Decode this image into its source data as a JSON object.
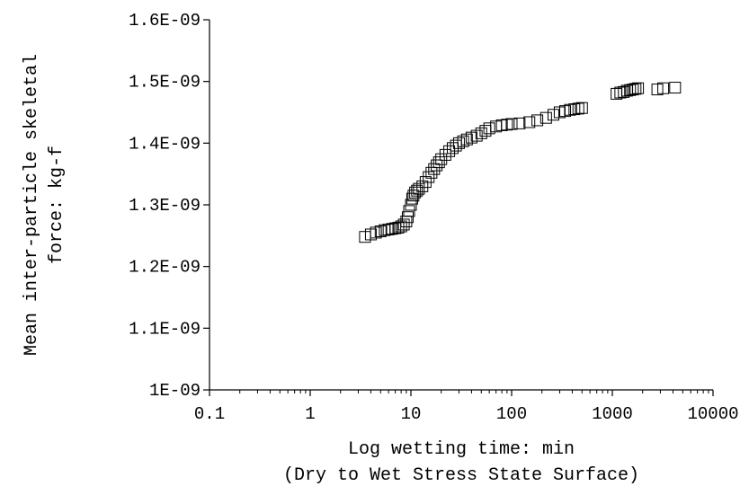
{
  "chart_data": {
    "type": "scatter",
    "title": "",
    "xlabel": "Log wetting time: min",
    "xlabel_line2": "(Dry to Wet Stress State Surface)",
    "ylabel": "Mean inter-particle skeletal",
    "ylabel_line2": "force: kg-f",
    "x_scale": "log",
    "xlim": [
      0.1,
      10000
    ],
    "ylim": [
      1e-09,
      1.6e-09
    ],
    "x_ticks": [
      0.1,
      1,
      10,
      100,
      1000,
      10000
    ],
    "x_tick_labels": [
      "0.1",
      "1",
      "10",
      "100",
      "1000",
      "10000"
    ],
    "y_ticks": [
      1e-09,
      1.1e-09,
      1.2e-09,
      1.3e-09,
      1.4e-09,
      1.5e-09,
      1.6e-09
    ],
    "y_tick_labels": [
      "1E-09",
      "1.1E-09",
      "1.2E-09",
      "1.3E-09",
      "1.4E-09",
      "1.5E-09",
      "1.6E-09"
    ],
    "grid": false,
    "legend": "none",
    "marker": "open-square",
    "colors": {
      "marker_stroke": "#000000",
      "axis": "#000000",
      "background": "#ffffff"
    },
    "series": [
      {
        "x": [
          3.5,
          4.0,
          4.5,
          5.0,
          5.5,
          6.0,
          6.5,
          7.0,
          7.5,
          8.0,
          8.5,
          9.0,
          9.3,
          9.6,
          10.0,
          10.3,
          10.6,
          11.0,
          11.5,
          12.0,
          13.0,
          14.0,
          15.0,
          16.0,
          17.0,
          18.0,
          19.0,
          20.0,
          22.0,
          24.0,
          26.0,
          28.0,
          30.0,
          33.0,
          36.0,
          40.0,
          45.0,
          50.0,
          55.0,
          60.0,
          70.0,
          80.0,
          90.0,
          100.0,
          120.0,
          150.0,
          180.0,
          220.0,
          260.0,
          300.0,
          340.0,
          380.0,
          420.0,
          460.0,
          500.0,
          1100.0,
          1200.0,
          1300.0,
          1400.0,
          1500.0,
          1600.0,
          1700.0,
          1800.0,
          2800.0,
          3200.0,
          4200.0
        ],
        "y": [
          1.248e-09,
          1.252e-09,
          1.255e-09,
          1.257e-09,
          1.259e-09,
          1.26e-09,
          1.261e-09,
          1.262e-09,
          1.263e-09,
          1.265e-09,
          1.268e-09,
          1.273e-09,
          1.28e-09,
          1.29e-09,
          1.3e-09,
          1.31e-09,
          1.315e-09,
          1.32e-09,
          1.323e-09,
          1.326e-09,
          1.33e-09,
          1.337e-09,
          1.345e-09,
          1.352e-09,
          1.358e-09,
          1.364e-09,
          1.369e-09,
          1.374e-09,
          1.381e-09,
          1.387e-09,
          1.392e-09,
          1.396e-09,
          1.4e-09,
          1.403e-09,
          1.406e-09,
          1.409e-09,
          1.412e-09,
          1.416e-09,
          1.42e-09,
          1.424e-09,
          1.427e-09,
          1.429e-09,
          1.43e-09,
          1.431e-09,
          1.432e-09,
          1.434e-09,
          1.437e-09,
          1.441e-09,
          1.446e-09,
          1.45e-09,
          1.452e-09,
          1.454e-09,
          1.455e-09,
          1.456e-09,
          1.457e-09,
          1.48e-09,
          1.482e-09,
          1.483e-09,
          1.485e-09,
          1.486e-09,
          1.487e-09,
          1.488e-09,
          1.489e-09,
          1.487e-09,
          1.489e-09,
          1.49e-09
        ]
      }
    ]
  }
}
